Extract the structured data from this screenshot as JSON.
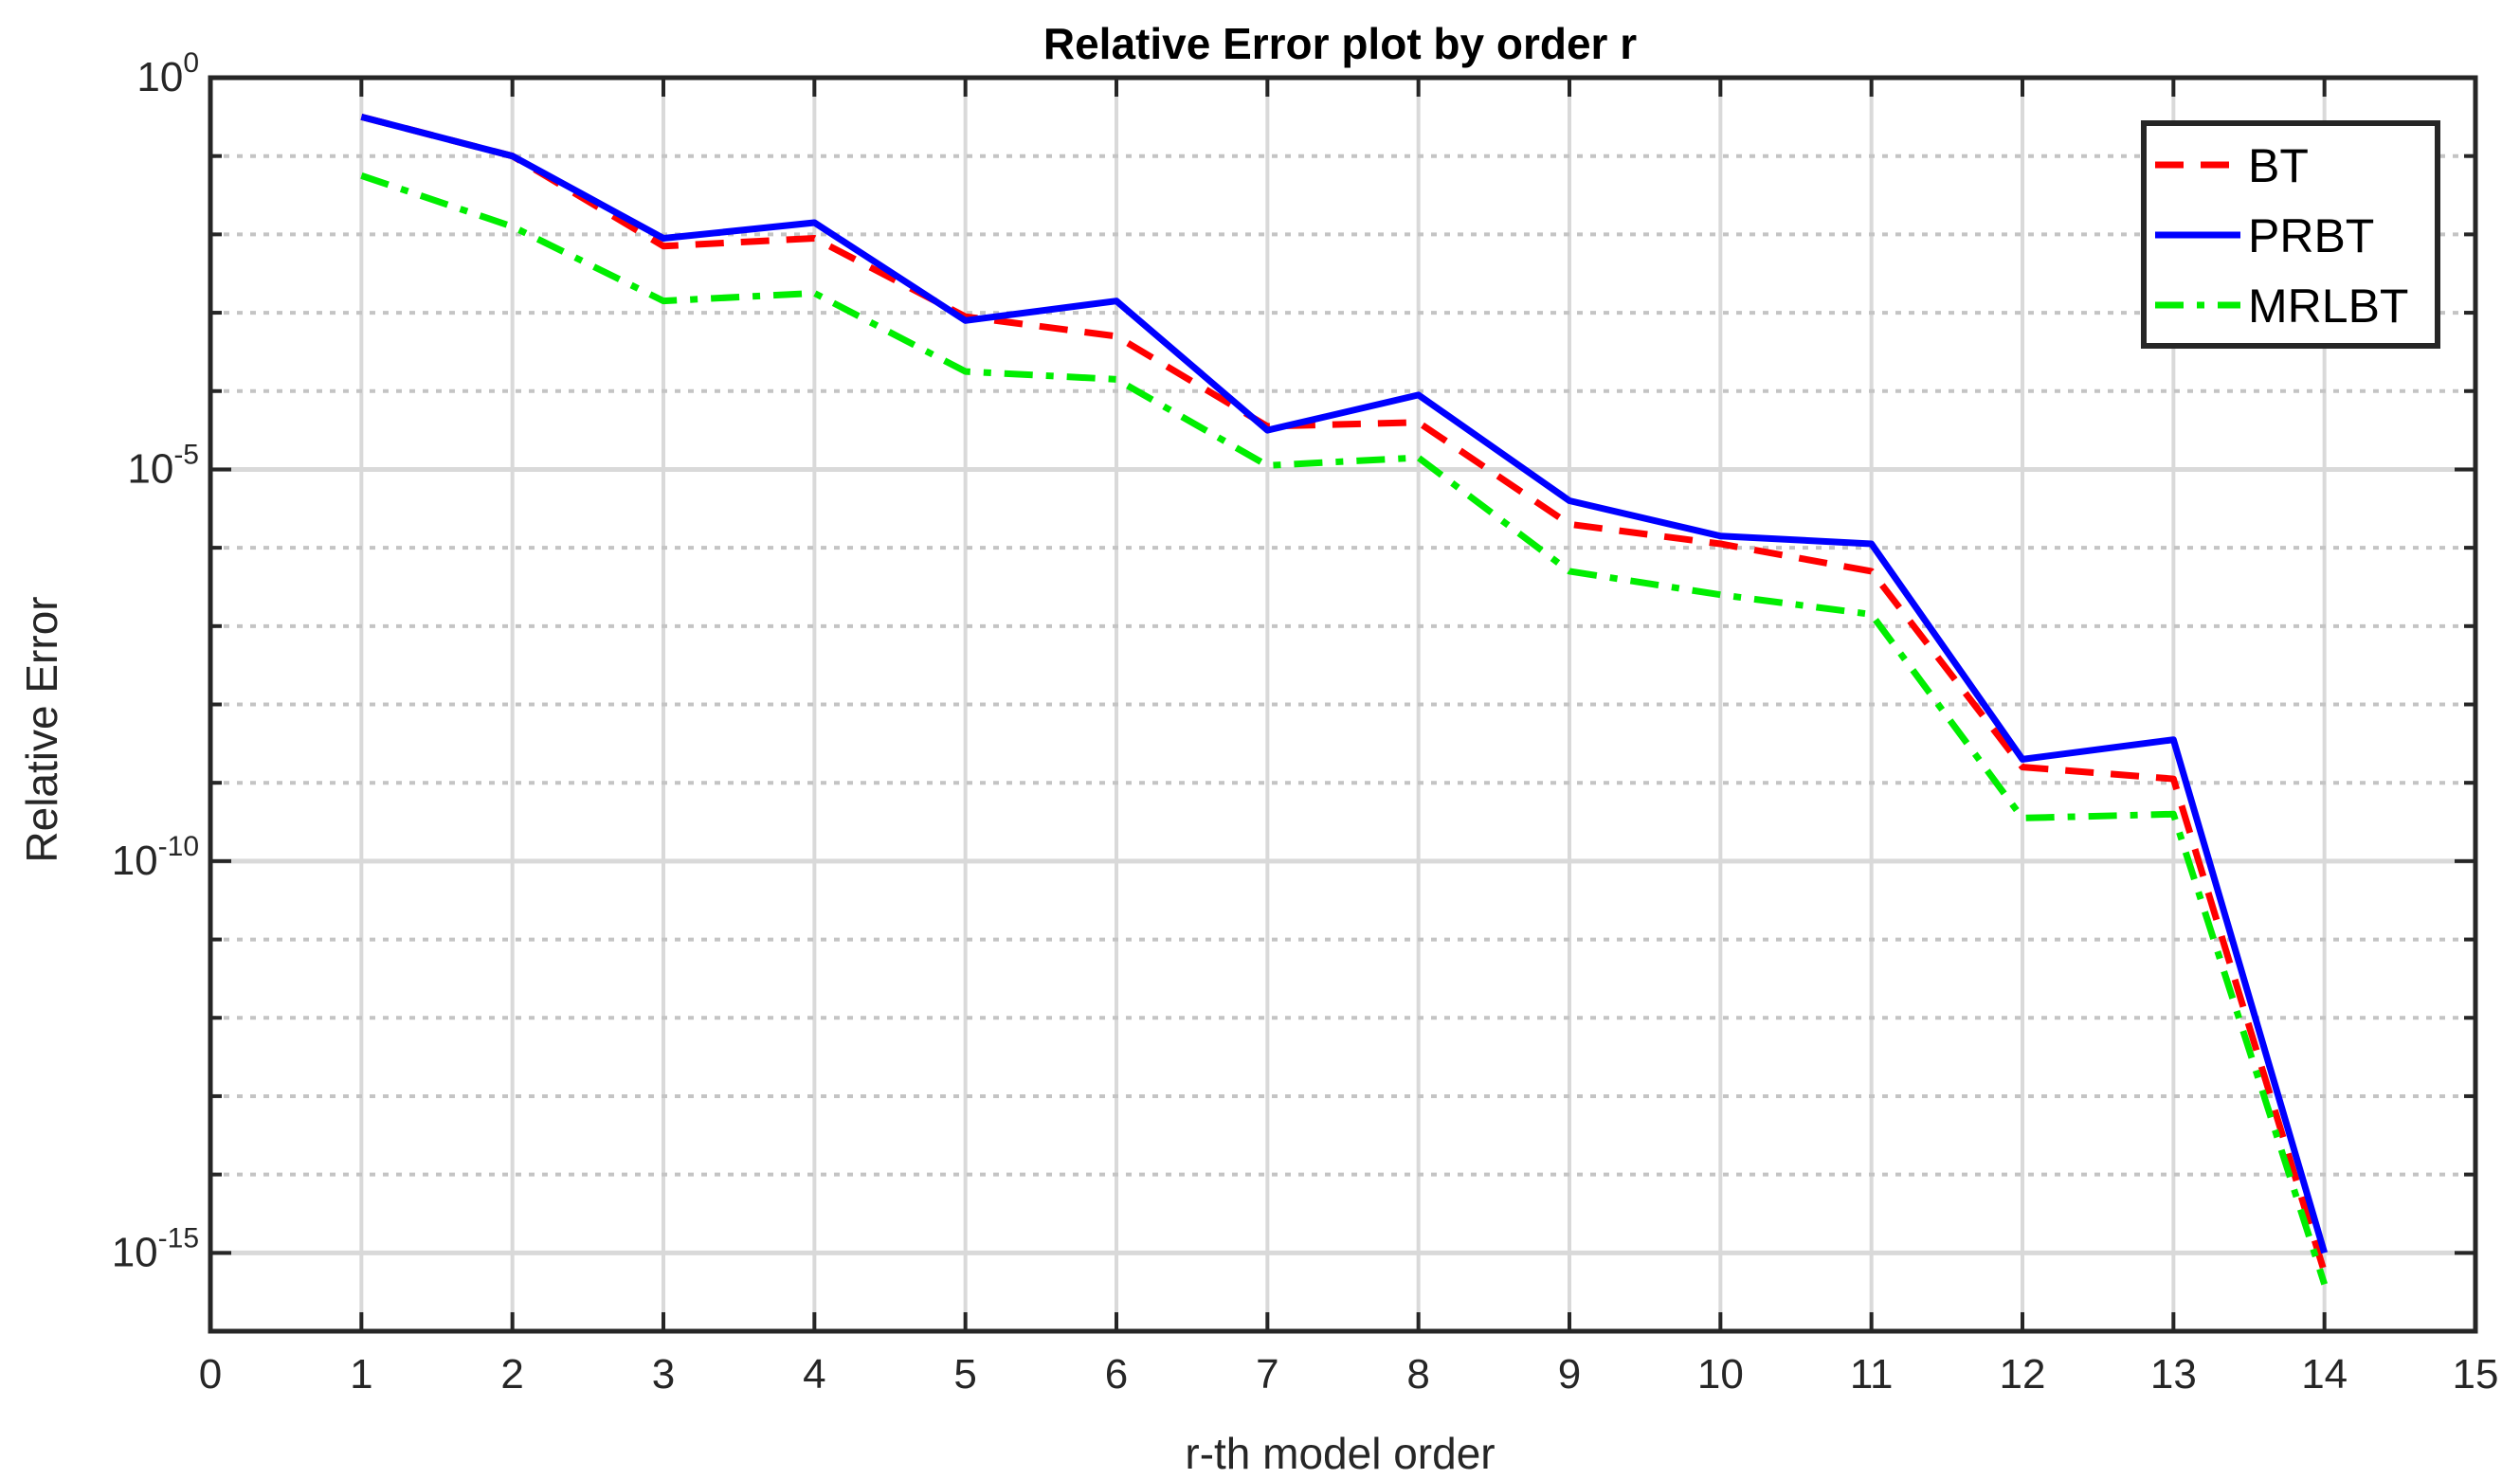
{
  "chart_data": {
    "type": "line",
    "title": "Relative Error plot by order r",
    "xlabel": "r-th model order",
    "ylabel": "Relative Error",
    "xlim": [
      0,
      15
    ],
    "ylim_log10": [
      -16,
      0
    ],
    "yscale": "log",
    "xticks": [
      "0",
      "1",
      "2",
      "3",
      "4",
      "5",
      "6",
      "7",
      "8",
      "9",
      "10",
      "11",
      "12",
      "13",
      "14",
      "15"
    ],
    "yticks": [
      {
        "base": "10",
        "exp": "0",
        "log10": 0
      },
      {
        "base": "10",
        "exp": "-5",
        "log10": -5
      },
      {
        "base": "10",
        "exp": "-10",
        "log10": -10
      },
      {
        "base": "10",
        "exp": "-15",
        "log10": -15
      }
    ],
    "grid": true,
    "legend_position": "top-right",
    "x": [
      1,
      2,
      3,
      4,
      5,
      6,
      7,
      8,
      9,
      10,
      11,
      12,
      13,
      14
    ],
    "series": [
      {
        "name": "BT",
        "color": "#ff0000",
        "dash": "dashed",
        "log10_values": [
          -0.5,
          -1.0,
          -2.15,
          -2.05,
          -3.05,
          -3.3,
          -4.45,
          -4.4,
          -5.7,
          -5.95,
          -6.3,
          -8.8,
          -8.95,
          -15.25
        ]
      },
      {
        "name": "PRBT",
        "color": "#0000ff",
        "dash": "solid",
        "log10_values": [
          -0.5,
          -1.0,
          -2.05,
          -1.85,
          -3.1,
          -2.85,
          -4.5,
          -4.05,
          -5.4,
          -5.85,
          -5.95,
          -8.7,
          -8.45,
          -15.0
        ]
      },
      {
        "name": "MRLBT",
        "color": "#00ee00",
        "dash": "dashdot",
        "log10_values": [
          -1.25,
          -1.9,
          -2.85,
          -2.75,
          -3.75,
          -3.85,
          -4.95,
          -4.85,
          -6.3,
          -6.6,
          -6.85,
          -9.45,
          -9.4,
          -15.4
        ]
      }
    ]
  }
}
